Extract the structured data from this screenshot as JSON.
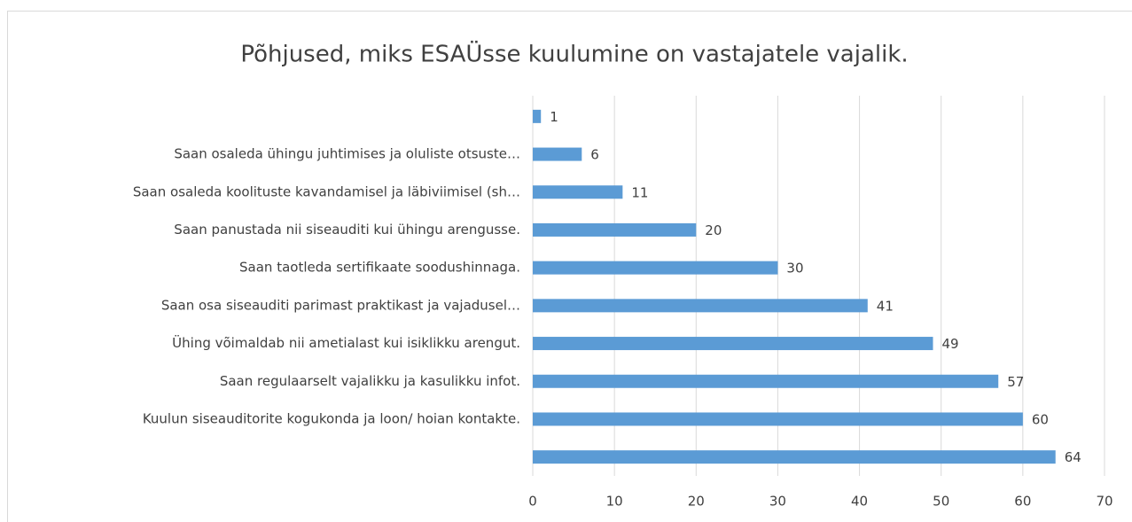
{
  "chart_data": {
    "type": "bar",
    "orientation": "horizontal",
    "title": "Põhjused, miks ESAÜsse kuulumine on vastajatele vajalik.",
    "categories": [
      null,
      "Saan osaleda ühingu juhtimises ja oluliste otsuste…",
      "Saan osaleda koolituste kavandamisel ja läbiviimisel (sh…",
      "Saan panustada nii siseauditi kui ühingu arengusse.",
      "Saan taotleda sertifikaate soodushinnaga.",
      "Saan osa siseauditi parimast praktikast ja vajadusel…",
      "Ühing võimaldab nii ametialast kui isiklikku arengut.",
      "Saan regulaarselt vajalikku ja kasulikku infot.",
      "Kuulun siseauditorite kogukonda ja loon/ hoian kontakte.",
      null
    ],
    "values": [
      1,
      6,
      11,
      20,
      30,
      41,
      49,
      57,
      60,
      64
    ],
    "color": "#5b9bd5",
    "xlim": [
      0,
      70
    ],
    "xticks": [
      0,
      10,
      20,
      30,
      40,
      50,
      60,
      70
    ],
    "grid": true
  }
}
